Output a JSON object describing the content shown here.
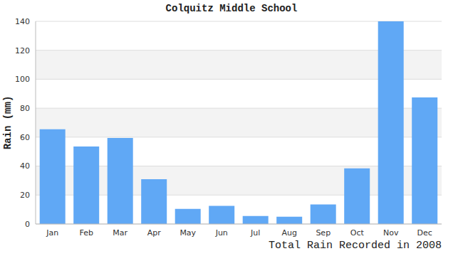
{
  "chart_data": {
    "type": "bar",
    "title": "Colquitz Middle School",
    "x_label": "Total Rain Recorded in 2008",
    "y_label": "Rain (mm)",
    "categories": [
      "Jan",
      "Feb",
      "Mar",
      "Apr",
      "May",
      "Jun",
      "Jul",
      "Aug",
      "Sep",
      "Oct",
      "Nov",
      "Dec"
    ],
    "values": [
      65.5,
      53.5,
      59.5,
      31,
      10.5,
      12.5,
      5.5,
      5,
      13.5,
      38.5,
      140,
      87.5
    ],
    "color": "#60a8f5",
    "ylim": [
      0,
      140
    ],
    "yticks": [
      0,
      20,
      40,
      60,
      80,
      100,
      120,
      140
    ],
    "grid": true
  }
}
